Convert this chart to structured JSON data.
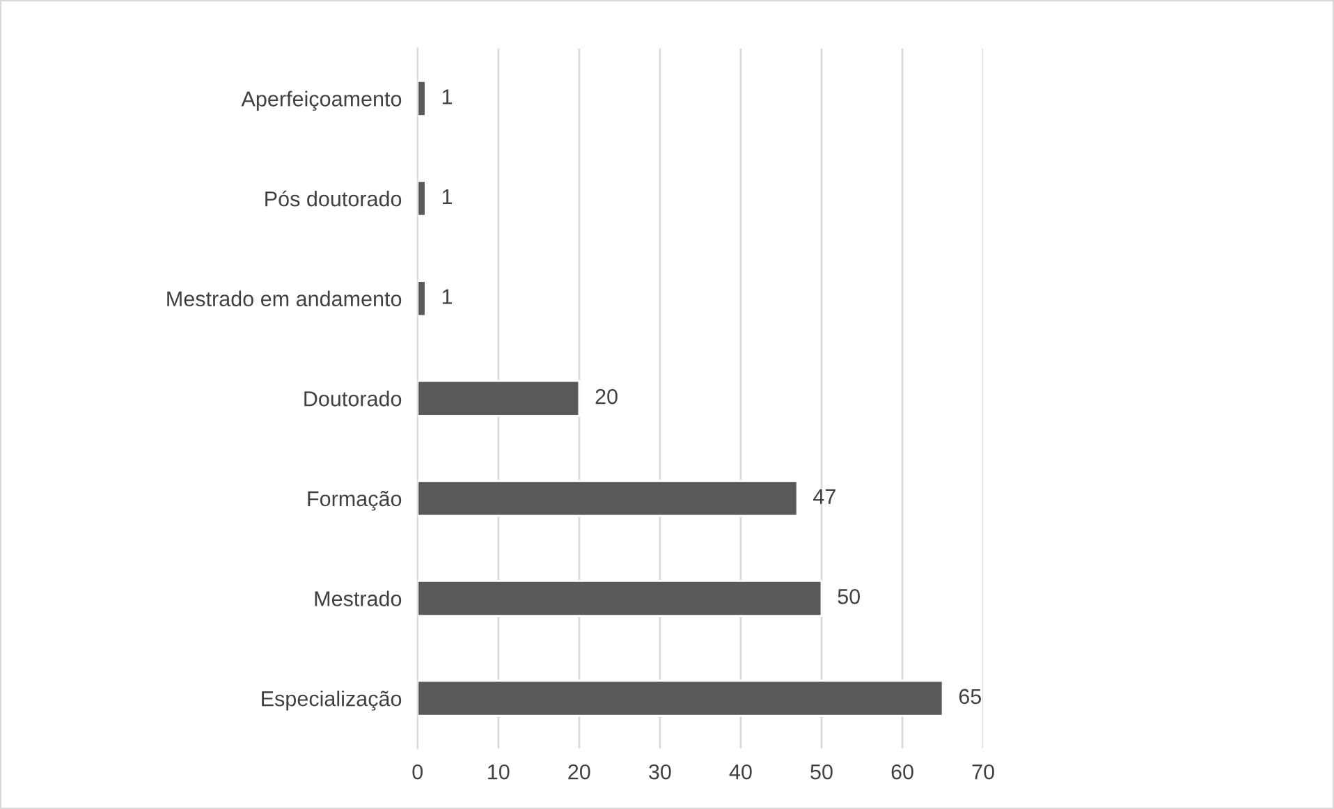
{
  "chart_data": {
    "type": "bar",
    "orientation": "horizontal",
    "categories": [
      "Aperfeiçoamento",
      "Pós doutorado",
      "Mestrado em andamento",
      "Doutorado",
      "Formação",
      "Mestrado",
      "Especialização"
    ],
    "values": [
      1,
      1,
      1,
      20,
      47,
      50,
      65
    ],
    "color": "#595959",
    "xlim": [
      0,
      70
    ],
    "xticks": [
      0,
      10,
      20,
      30,
      40,
      50,
      60,
      70
    ],
    "grid": "x",
    "data_labels": true,
    "legend": false
  }
}
